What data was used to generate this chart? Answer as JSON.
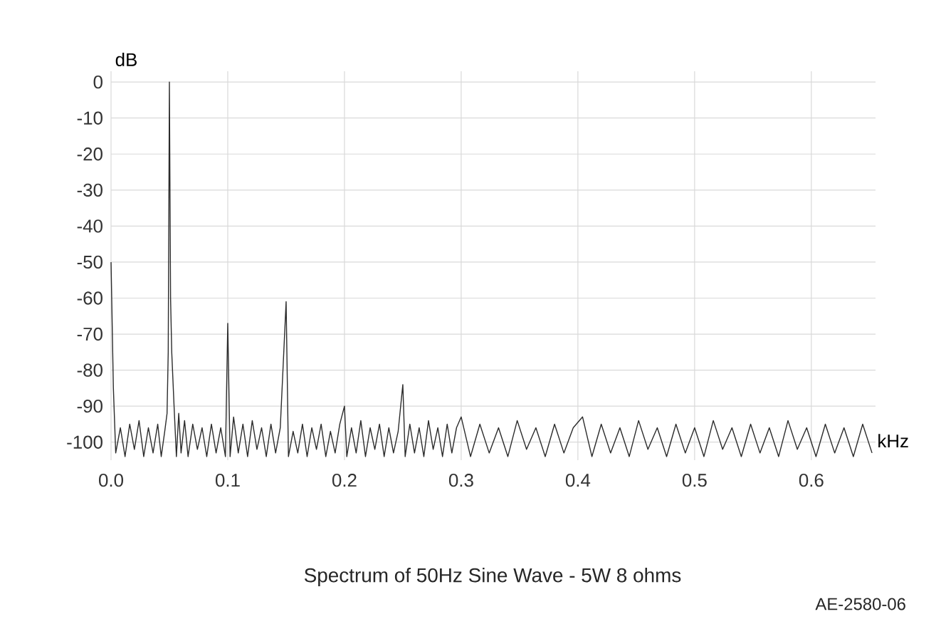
{
  "chart_data": {
    "type": "line",
    "xlabel": "kHz",
    "ylabel": "dB",
    "annotations": [
      "Spectrum of 50Hz Sine Wave - 5W 8 ohms",
      "AE-2580-06"
    ],
    "xlim": [
      0,
      0.655
    ],
    "ylim": [
      -105,
      3
    ],
    "xticks": [
      {
        "value": 0,
        "label": "0.0"
      },
      0.1,
      0.2,
      0.3,
      0.4,
      0.5,
      0.6
    ],
    "yticks": [
      0,
      -10,
      -20,
      -30,
      -40,
      -50,
      -60,
      -70,
      -80,
      -90,
      -100
    ],
    "grid": true,
    "series": [
      {
        "color": "#2b2b2b",
        "x": [
          0.0,
          0.002,
          0.004,
          0.008,
          0.012,
          0.016,
          0.02,
          0.024,
          0.028,
          0.032,
          0.036,
          0.04,
          0.043,
          0.046,
          0.048,
          0.049,
          0.05,
          0.051,
          0.052,
          0.054,
          0.056,
          0.058,
          0.06,
          0.063,
          0.066,
          0.07,
          0.074,
          0.078,
          0.082,
          0.086,
          0.09,
          0.094,
          0.098,
          0.1,
          0.102,
          0.105,
          0.109,
          0.113,
          0.117,
          0.121,
          0.125,
          0.129,
          0.133,
          0.137,
          0.141,
          0.145,
          0.15,
          0.152,
          0.156,
          0.16,
          0.164,
          0.168,
          0.172,
          0.176,
          0.18,
          0.184,
          0.188,
          0.192,
          0.196,
          0.2,
          0.202,
          0.206,
          0.21,
          0.214,
          0.218,
          0.222,
          0.226,
          0.23,
          0.234,
          0.238,
          0.242,
          0.246,
          0.25,
          0.252,
          0.256,
          0.26,
          0.264,
          0.268,
          0.272,
          0.276,
          0.28,
          0.284,
          0.288,
          0.292,
          0.296,
          0.3,
          0.308,
          0.316,
          0.324,
          0.332,
          0.34,
          0.348,
          0.356,
          0.364,
          0.372,
          0.38,
          0.388,
          0.396,
          0.404,
          0.412,
          0.42,
          0.428,
          0.436,
          0.444,
          0.452,
          0.46,
          0.468,
          0.476,
          0.484,
          0.492,
          0.5,
          0.508,
          0.516,
          0.524,
          0.532,
          0.54,
          0.548,
          0.556,
          0.564,
          0.572,
          0.58,
          0.588,
          0.596,
          0.604,
          0.612,
          0.62,
          0.628,
          0.636,
          0.644,
          0.652
        ],
        "values": [
          -50,
          -85,
          -103,
          -96,
          -104,
          -95,
          -102,
          -94,
          -104,
          -96,
          -103,
          -95,
          -104,
          -97,
          -92,
          -75,
          0,
          -60,
          -75,
          -90,
          -104,
          -92,
          -103,
          -94,
          -104,
          -95,
          -102,
          -96,
          -104,
          -95,
          -103,
          -96,
          -104,
          -67,
          -104,
          -93,
          -103,
          -95,
          -104,
          -94,
          -102,
          -96,
          -104,
          -95,
          -103,
          -96,
          -61,
          -104,
          -97,
          -103,
          -95,
          -104,
          -96,
          -102,
          -95,
          -104,
          -97,
          -103,
          -95,
          -90,
          -104,
          -96,
          -103,
          -94,
          -104,
          -96,
          -102,
          -95,
          -104,
          -96,
          -103,
          -97,
          -84,
          -104,
          -95,
          -103,
          -96,
          -104,
          -94,
          -102,
          -96,
          -104,
          -95,
          -103,
          -96,
          -93,
          -104,
          -95,
          -103,
          -96,
          -104,
          -94,
          -102,
          -96,
          -104,
          -95,
          -103,
          -96,
          -93,
          -104,
          -95,
          -103,
          -96,
          -104,
          -94,
          -102,
          -96,
          -104,
          -95,
          -103,
          -96,
          -104,
          -94,
          -102,
          -96,
          -104,
          -95,
          -103,
          -96,
          -104,
          -94,
          -102,
          -96,
          -104,
          -95,
          -103,
          -96,
          -104,
          -95,
          -103
        ]
      }
    ]
  }
}
